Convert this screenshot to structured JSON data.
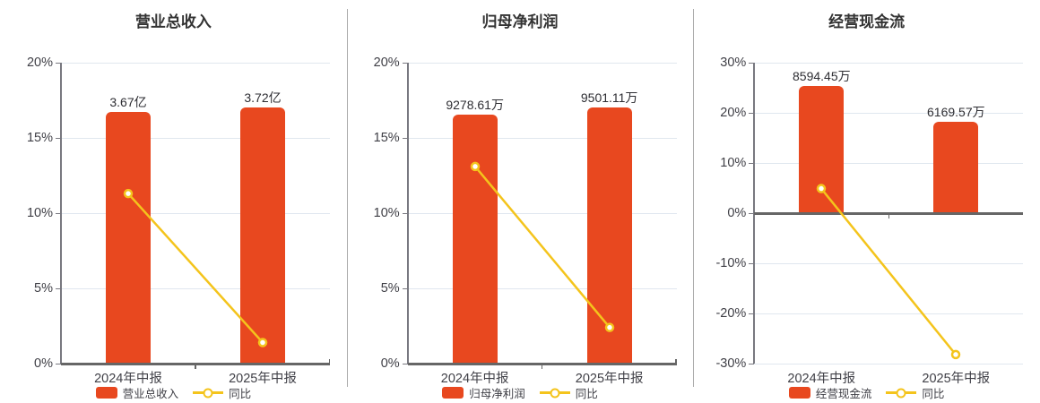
{
  "colors": {
    "bar": "#e8481f",
    "line": "#f4c41c",
    "grid": "#e0e7ef",
    "axis": "#666666",
    "axis_light": "#787880",
    "divider": "#ababab",
    "text": "#3f3f46",
    "title": "#333333",
    "bar_label": "#2e2e33",
    "marker_fill": "#ffffff"
  },
  "chart_data": [
    {
      "type": "bar",
      "title": "营业总收入",
      "categories": [
        "2024年中报",
        "2025年中报"
      ],
      "bar_series": {
        "name": "营业总收入",
        "value_labels": [
          "3.67亿",
          "3.72亿"
        ],
        "height_axis_pct": [
          16.75,
          17.0
        ]
      },
      "line_series": {
        "name": "同比",
        "values_pct": [
          11.3,
          1.4
        ]
      },
      "y_axis": {
        "min": 0,
        "max": 20,
        "ticks": [
          {
            "v": 20,
            "label": "20%"
          },
          {
            "v": 15,
            "label": "15%"
          },
          {
            "v": 10,
            "label": "10%"
          },
          {
            "v": 5,
            "label": "5%"
          },
          {
            "v": 0,
            "label": "0%"
          }
        ]
      },
      "legend": [
        "营业总收入",
        "同比"
      ],
      "grid_on": true,
      "legend_position": "bottom"
    },
    {
      "type": "bar",
      "title": "归母净利润",
      "categories": [
        "2024年中报",
        "2025年中报"
      ],
      "bar_series": {
        "name": "归母净利润",
        "value_labels": [
          "9278.61万",
          "9501.11万"
        ],
        "height_axis_pct": [
          16.55,
          17.0
        ]
      },
      "line_series": {
        "name": "同比",
        "values_pct": [
          13.1,
          2.4
        ]
      },
      "y_axis": {
        "min": 0,
        "max": 20,
        "ticks": [
          {
            "v": 20,
            "label": "20%"
          },
          {
            "v": 15,
            "label": "15%"
          },
          {
            "v": 10,
            "label": "10%"
          },
          {
            "v": 5,
            "label": "5%"
          },
          {
            "v": 0,
            "label": "0%"
          }
        ]
      },
      "legend": [
        "归母净利润",
        "同比"
      ],
      "grid_on": true,
      "legend_position": "bottom"
    },
    {
      "type": "bar",
      "title": "经营现金流",
      "categories": [
        "2024年中报",
        "2025年中报"
      ],
      "bar_series": {
        "name": "经营现金流",
        "value_labels": [
          "8594.45万",
          "6169.57万"
        ],
        "height_axis_pct": [
          25.4,
          18.3
        ]
      },
      "line_series": {
        "name": "同比",
        "values_pct": [
          4.9,
          -28.2
        ]
      },
      "y_axis": {
        "min": -30,
        "max": 30,
        "ticks": [
          {
            "v": 30,
            "label": "30%"
          },
          {
            "v": 20,
            "label": "20%"
          },
          {
            "v": 10,
            "label": "10%"
          },
          {
            "v": 0,
            "label": "0%"
          },
          {
            "v": -10,
            "label": "-10%"
          },
          {
            "v": -20,
            "label": "-20%"
          },
          {
            "v": -30,
            "label": "-30%"
          }
        ]
      },
      "legend": [
        "经营现金流",
        "同比"
      ],
      "grid_on": true,
      "legend_position": "bottom"
    }
  ]
}
